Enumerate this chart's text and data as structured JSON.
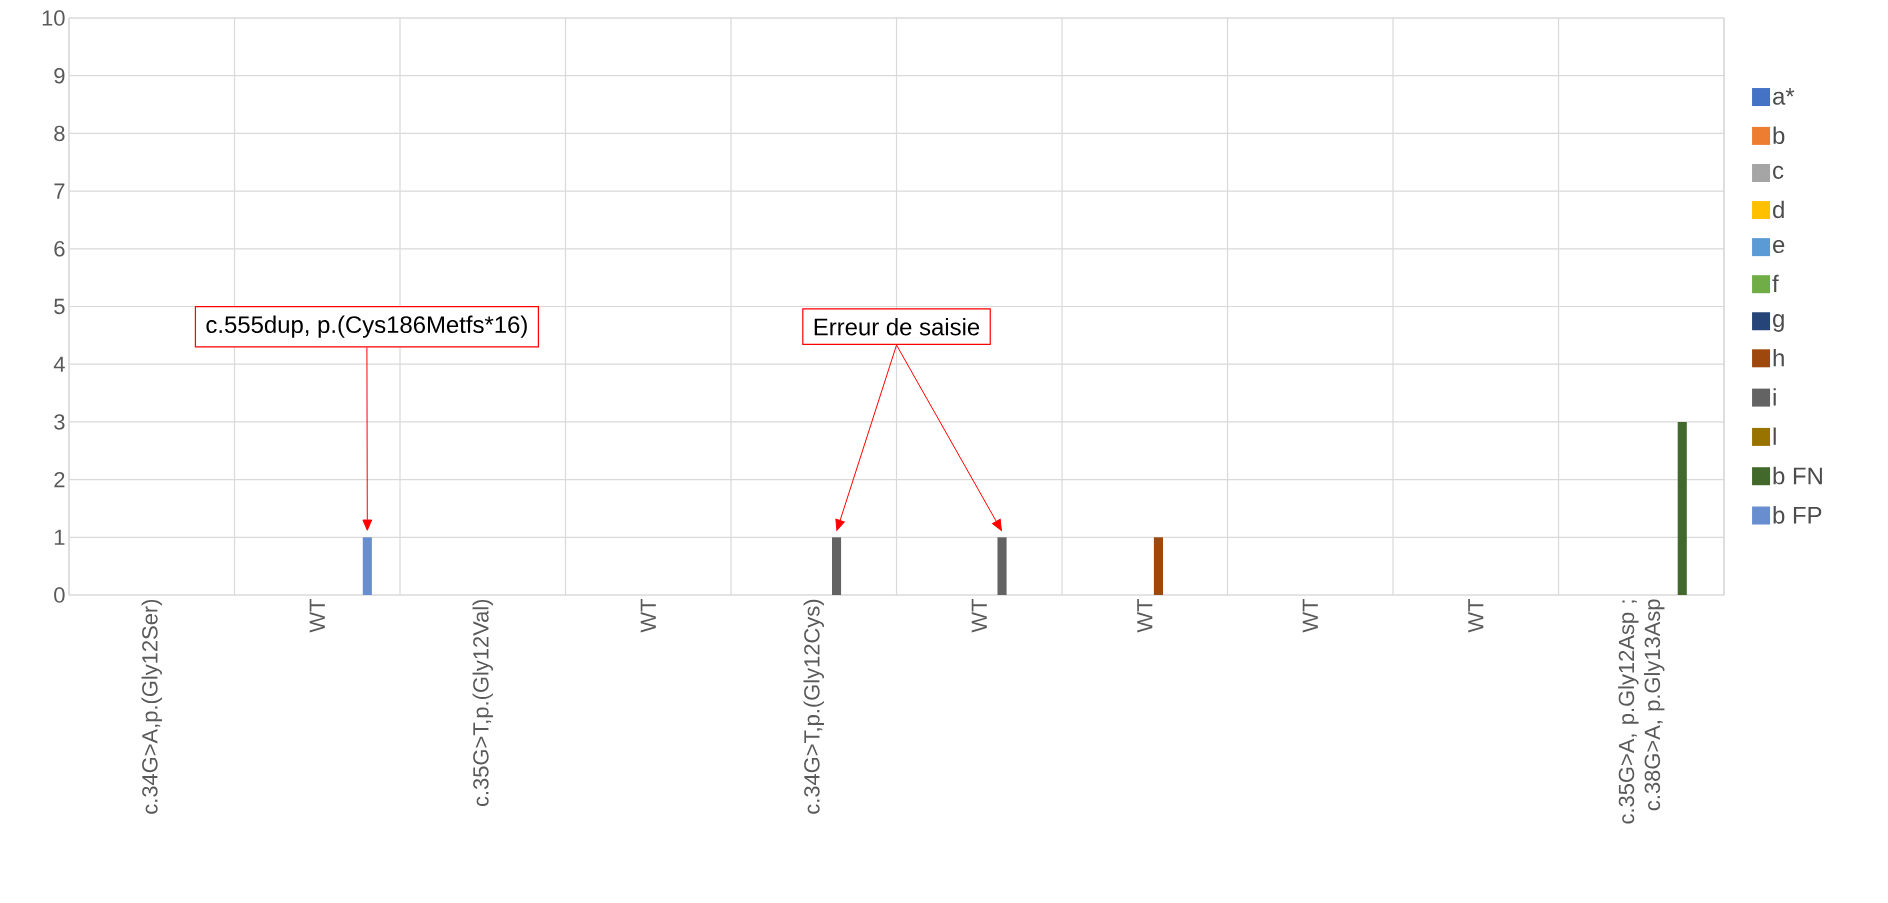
{
  "chart_data": {
    "type": "bar",
    "categories": [
      "c.34G>A,p.(Gly12Ser)",
      "WT",
      "c.35G>T,p.(Gly12Val)",
      "WT",
      "c.34G>T,p.(Gly12Cys)",
      "WT",
      "WT",
      "WT",
      "WT",
      "c.35G>A, p.Gly12Asp ; c.38G>A, p.Gly13Asp"
    ],
    "series": [
      {
        "name": "a*",
        "color": "#4472c4",
        "values": [
          0,
          0,
          0,
          0,
          0,
          0,
          0,
          0,
          0,
          0
        ]
      },
      {
        "name": "b",
        "color": "#ed7d31",
        "values": [
          0,
          0,
          0,
          0,
          0,
          0,
          0,
          0,
          0,
          0
        ]
      },
      {
        "name": "c",
        "color": "#a5a5a5",
        "values": [
          0,
          0,
          0,
          0,
          0,
          0,
          0,
          0,
          0,
          0
        ]
      },
      {
        "name": "d",
        "color": "#ffc000",
        "values": [
          0,
          0,
          0,
          0,
          0,
          0,
          0,
          0,
          0,
          0
        ]
      },
      {
        "name": "e",
        "color": "#5b9bd5",
        "values": [
          0,
          0,
          0,
          0,
          0,
          0,
          0,
          0,
          0,
          0
        ]
      },
      {
        "name": "f",
        "color": "#70ad47",
        "values": [
          0,
          0,
          0,
          0,
          0,
          0,
          0,
          0,
          0,
          0
        ]
      },
      {
        "name": "g",
        "color": "#264478",
        "values": [
          0,
          0,
          0,
          0,
          0,
          0,
          0,
          0,
          0,
          0
        ]
      },
      {
        "name": "h",
        "color": "#9e480e",
        "values": [
          0,
          0,
          0,
          0,
          0,
          0,
          1,
          0,
          0,
          0
        ]
      },
      {
        "name": "i",
        "color": "#636363",
        "values": [
          0,
          0,
          0,
          0,
          1,
          1,
          0,
          0,
          0,
          0
        ]
      },
      {
        "name": "l",
        "color": "#997300",
        "values": [
          0,
          0,
          0,
          0,
          0,
          0,
          0,
          0,
          0,
          0
        ]
      },
      {
        "name": "b FN",
        "color": "#43682b",
        "values": [
          0,
          0,
          0,
          0,
          0,
          0,
          0,
          0,
          0,
          3
        ]
      },
      {
        "name": "b FP",
        "color": "#698ed0",
        "values": [
          0,
          1,
          0,
          0,
          0,
          0,
          0,
          0,
          0,
          0
        ]
      }
    ],
    "ylim": [
      0,
      10
    ],
    "yticks": [
      0,
      1,
      2,
      3,
      4,
      5,
      6,
      7,
      8,
      9,
      10
    ],
    "grid": true,
    "legend": "right",
    "annotations": [
      "c.555dup, p.(Cys186Metfs*16)",
      "Erreur de saisie"
    ]
  }
}
